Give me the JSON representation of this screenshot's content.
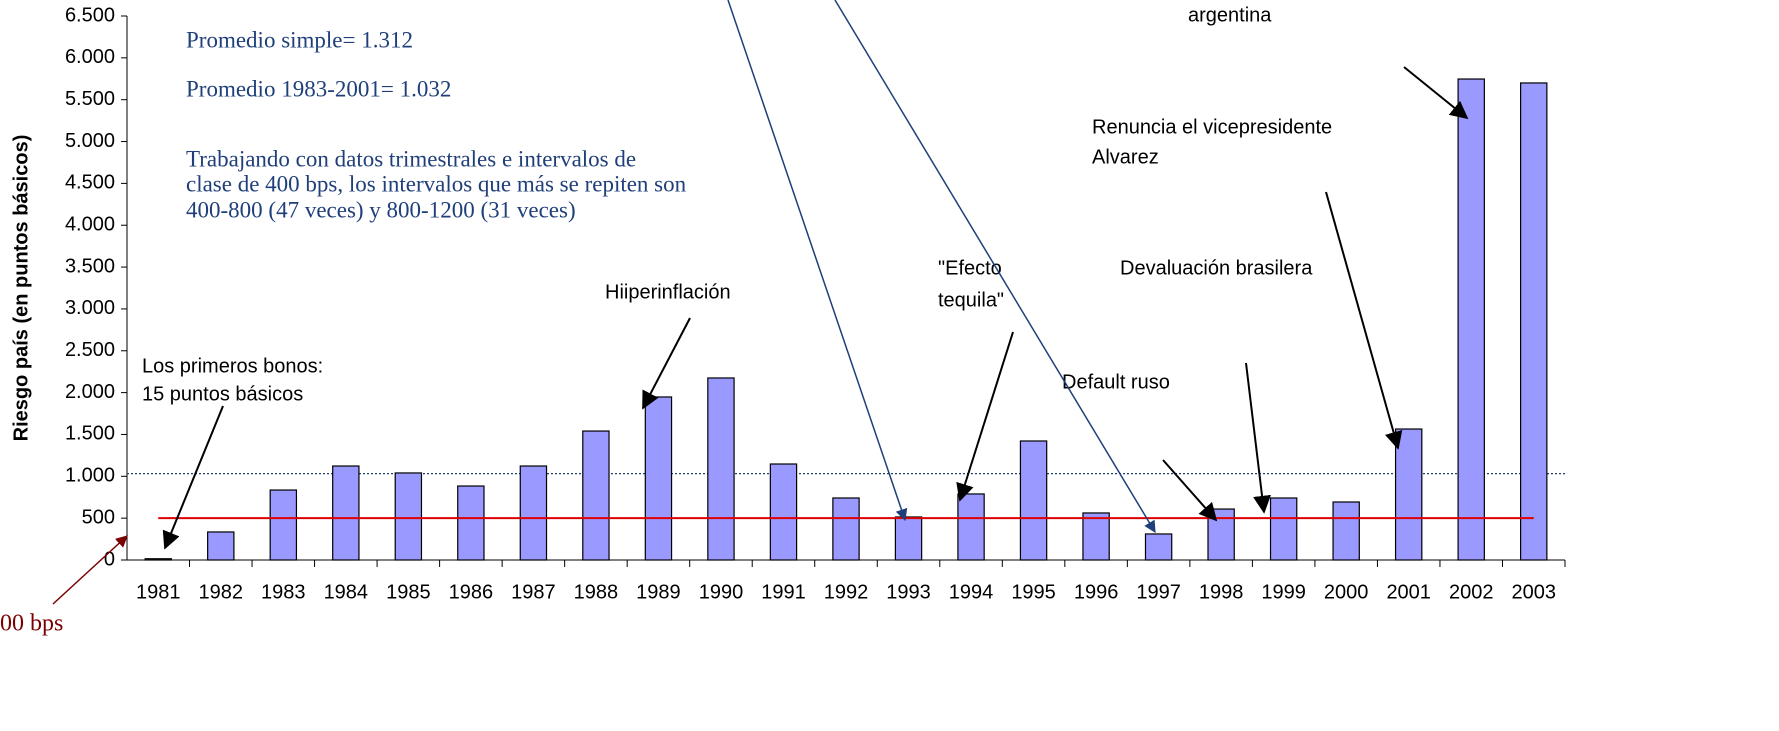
{
  "chart_data": {
    "type": "bar",
    "ylabel": "Riesgo país (en puntos básicos)",
    "categories": [
      "1981",
      "1982",
      "1983",
      "1984",
      "1985",
      "1986",
      "1987",
      "1988",
      "1989",
      "1990",
      "1991",
      "1992",
      "1993",
      "1994",
      "1995",
      "1996",
      "1997",
      "1998",
      "1999",
      "2000",
      "2001",
      "2002",
      "2003"
    ],
    "values": [
      15,
      335,
      836,
      1123,
      1040,
      884,
      1123,
      1541,
      1948,
      2175,
      1147,
      741,
      514,
      789,
      1422,
      562,
      311,
      609,
      741,
      693,
      1565,
      5747,
      5700
    ],
    "color": "#9999ff",
    "ylim": [
      0,
      6500
    ],
    "yticks": [
      0,
      500,
      {
        "value": 1000,
        "label": "1.000"
      },
      {
        "value": 1500,
        "label": "1.500"
      },
      {
        "value": 2000,
        "label": "2.000"
      },
      {
        "value": 2500,
        "label": "2.500"
      },
      {
        "value": 3000,
        "label": "3.000"
      },
      {
        "value": 3500,
        "label": "3.500"
      },
      {
        "value": 4000,
        "label": "4.000"
      },
      {
        "value": 4500,
        "label": "4.500"
      },
      {
        "value": 5000,
        "label": "5.000"
      },
      {
        "value": 5500,
        "label": "5.500"
      },
      {
        "value": 6000,
        "label": "6.000"
      },
      {
        "value": 6500,
        "label": "6.500"
      }
    ],
    "average_line": 1032,
    "threshold_line": 500,
    "notes": [
      "Promedio simple= 1.312",
      "Promedio 1983-2001= 1.032",
      "Trabajando con datos trimestrales e intervalos de",
      "clase de 400 bps, los intervalos que más se repiten son",
      "400-800 (47 veces) y 800-1200 (31 veces)"
    ],
    "annotations": [
      "argentina",
      "Renuncia el vicepresidente",
      "Alvarez",
      "Hiiperinflación",
      "\"Efecto",
      "tequila\"",
      "Devaluación brasilera",
      "Default ruso",
      "Los primeros bonos:",
      "15 puntos básicos"
    ],
    "threshold_label": "00 bps"
  }
}
